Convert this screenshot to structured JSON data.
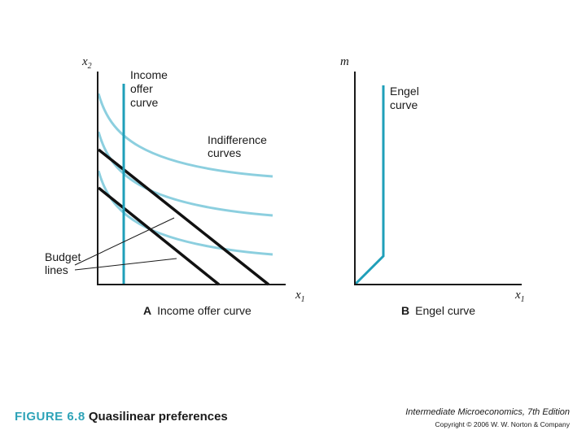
{
  "panel_a": {
    "y_axis_label": "x",
    "y_axis_sub": "2",
    "x_axis_label": "x",
    "x_axis_sub": "1",
    "ioc_label": [
      "Income",
      "offer",
      "curve"
    ],
    "indiff_label": [
      "Indifference",
      "curves"
    ],
    "budget_label": [
      "Budget",
      "lines"
    ],
    "title_letter": "A",
    "title": "Income offer curve"
  },
  "panel_b": {
    "y_axis_label": "m",
    "x_axis_label": "x",
    "x_axis_sub": "1",
    "engel_label": [
      "Engel",
      "curve"
    ],
    "title_letter": "B",
    "title": "Engel curve"
  },
  "caption": {
    "number": "FIGURE 6.8",
    "title": "Quasilinear preferences"
  },
  "book": {
    "title": "Intermediate Microeconomics, 7th Edition",
    "copyright": "Copyright © 2006 W. W. Norton & Company"
  },
  "colors": {
    "curve_light": "#8ccfdf",
    "curve_dark": "#1f9fb9",
    "axis": "#1a1a1a",
    "budget": "#111111"
  }
}
